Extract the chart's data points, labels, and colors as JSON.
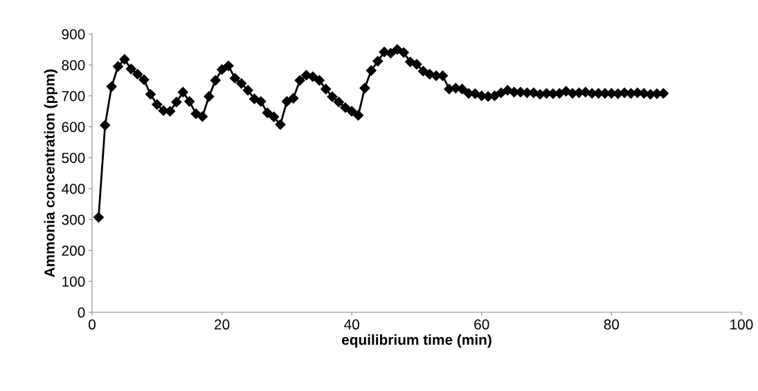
{
  "chart_data": {
    "type": "line",
    "xlabel": "equilibrium time (min)",
    "ylabel": "Ammonia concentration (ppm)",
    "x": [
      1,
      2,
      3,
      4,
      5,
      6,
      7,
      8,
      9,
      10,
      11,
      12,
      13,
      14,
      15,
      16,
      17,
      18,
      19,
      20,
      21,
      22,
      23,
      24,
      25,
      26,
      27,
      28,
      29,
      30,
      31,
      32,
      33,
      34,
      35,
      36,
      37,
      38,
      39,
      40,
      41,
      42,
      43,
      44,
      45,
      46,
      47,
      48,
      49,
      50,
      51,
      52,
      53,
      54,
      55,
      56,
      57,
      58,
      59,
      60,
      61,
      62,
      63,
      64,
      65,
      66,
      67,
      68,
      69,
      70,
      71,
      72,
      73,
      74,
      75,
      76,
      77,
      78,
      79,
      80,
      81,
      82,
      83,
      84,
      85,
      86,
      87,
      88
    ],
    "series": [
      {
        "color": "#000000",
        "values": [
          307,
          605,
          730,
          795,
          818,
          787,
          770,
          752,
          705,
          672,
          652,
          650,
          680,
          712,
          682,
          642,
          633,
          698,
          750,
          785,
          797,
          757,
          740,
          718,
          690,
          682,
          645,
          632,
          607,
          682,
          692,
          750,
          767,
          762,
          750,
          722,
          697,
          680,
          662,
          650,
          637,
          725,
          782,
          812,
          842,
          838,
          850,
          840,
          810,
          802,
          780,
          770,
          765,
          765,
          722,
          725,
          722,
          708,
          707,
          700,
          698,
          700,
          710,
          718,
          712,
          712,
          710,
          710,
          705,
          708,
          707,
          708,
          715,
          708,
          710,
          712,
          708,
          708,
          708,
          708,
          707,
          710,
          708,
          710,
          708,
          705,
          707,
          708
        ]
      }
    ],
    "xlim": [
      0,
      100
    ],
    "xticks": [
      0,
      20,
      40,
      60,
      80,
      100
    ],
    "ylim": [
      0,
      900
    ],
    "yticks": [
      0,
      100,
      200,
      300,
      400,
      500,
      600,
      700,
      800,
      900
    ],
    "marker": "diamond",
    "line_style": "solid",
    "grid": false,
    "legend": false
  }
}
